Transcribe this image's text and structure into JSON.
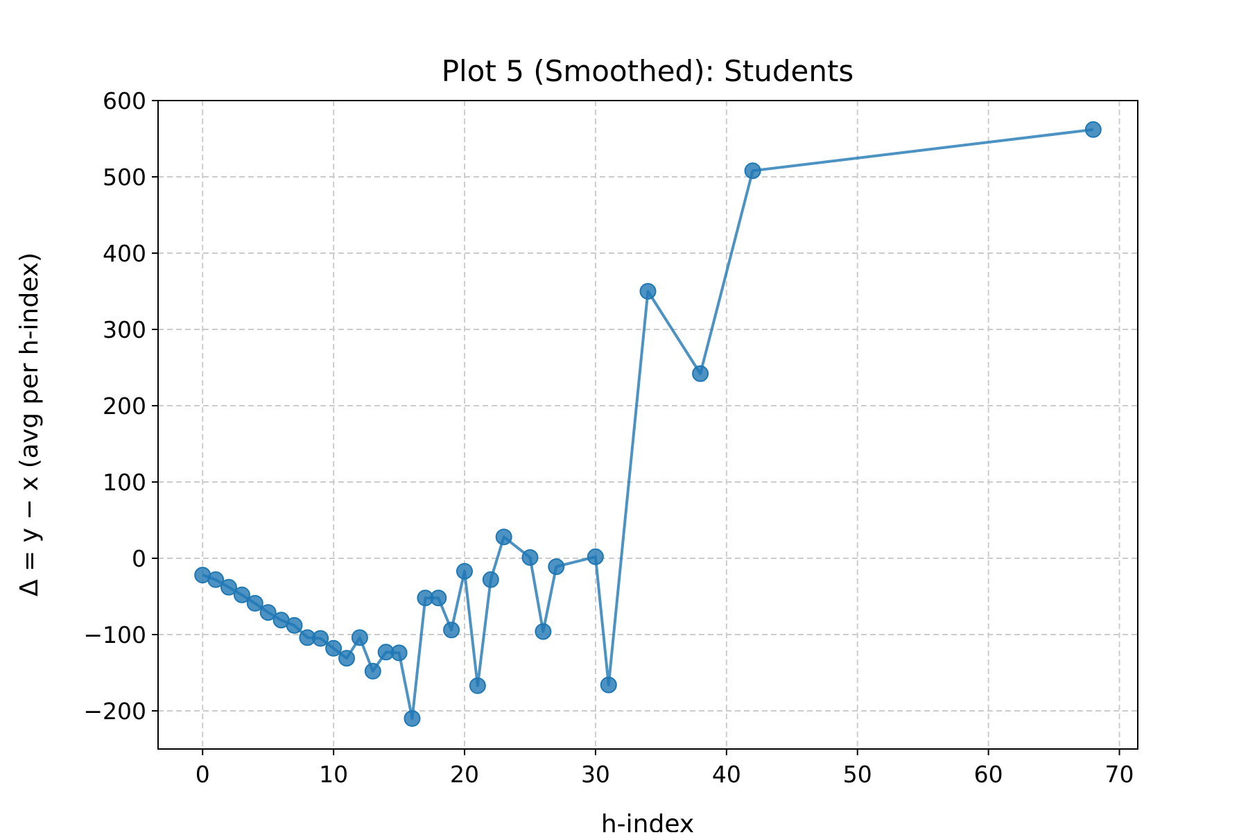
{
  "chart_data": {
    "type": "line",
    "title": "Plot 5 (Smoothed): Students",
    "xlabel": "h-index",
    "ylabel": "Δ = y − x (avg per h-index)",
    "xlim": [
      -3.4,
      71.4
    ],
    "ylim": [
      -250,
      600
    ],
    "x_ticks": [
      0,
      10,
      20,
      30,
      40,
      50,
      60,
      70
    ],
    "y_ticks": [
      -200,
      -100,
      0,
      100,
      200,
      300,
      400,
      500,
      600
    ],
    "x_tick_labels": [
      "0",
      "10",
      "20",
      "30",
      "40",
      "50",
      "60",
      "70"
    ],
    "y_tick_labels": [
      "−200",
      "−100",
      "0",
      "100",
      "200",
      "300",
      "400",
      "500",
      "600"
    ],
    "grid": true,
    "series": [
      {
        "color": "#1f77b4",
        "marker": "circle",
        "x": [
          0,
          1,
          2,
          3,
          4,
          5,
          6,
          7,
          8,
          9,
          10,
          11,
          12,
          13,
          14,
          15,
          16,
          17,
          18,
          19,
          20,
          21,
          22,
          23,
          25,
          26,
          27,
          30,
          31,
          34,
          38,
          42,
          68
        ],
        "y": [
          -22,
          -28,
          -38,
          -48,
          -59,
          -71,
          -81,
          -88,
          -104,
          -105,
          -118,
          -131,
          -104,
          -148,
          -123,
          -124,
          -210,
          -52,
          -52,
          -94,
          -17,
          -167,
          -28,
          28,
          1,
          -96,
          -11,
          2,
          -166,
          350,
          242,
          508,
          562
        ]
      }
    ]
  }
}
